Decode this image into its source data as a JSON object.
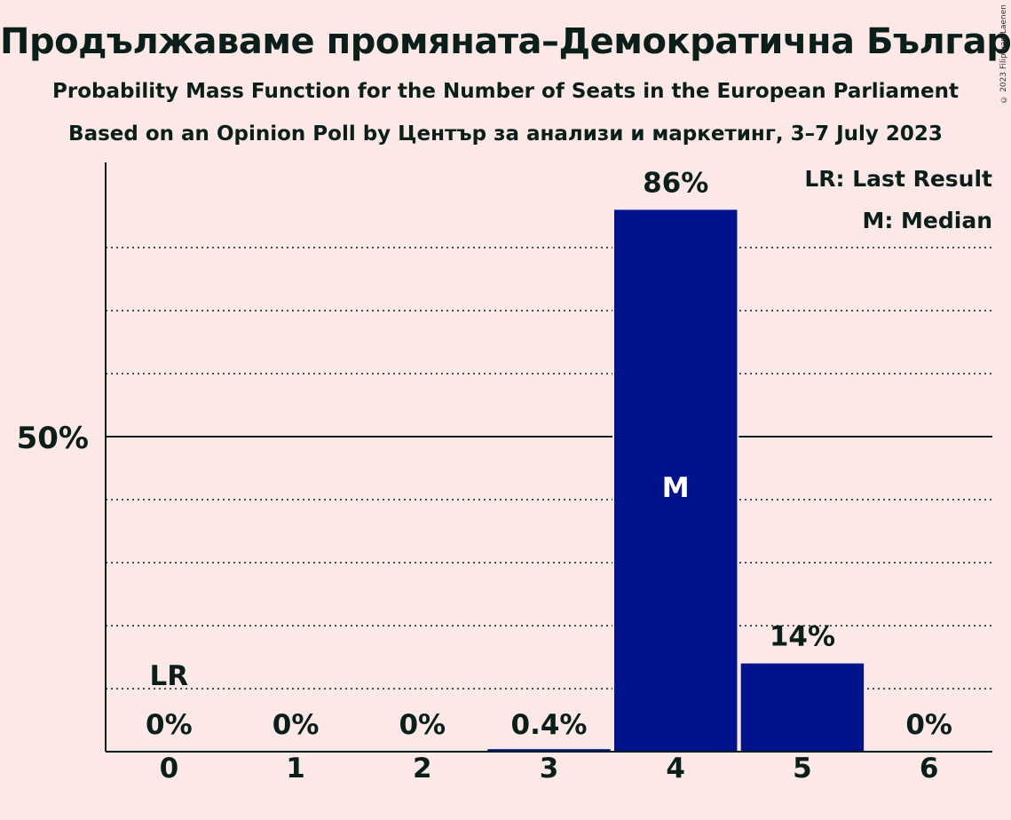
{
  "header": {
    "title": "Продължаваме промяната–Демократична България (Renew Europe)",
    "subtitle": "Probability Mass Function for the Number of Seats in the European Parliament",
    "source": "Based on an Opinion Poll by Център за анализи и маркетинг, 3–7 July 2023",
    "copyright": "© 2023 Filip van Laenen"
  },
  "colors": {
    "background": "#fde8e8",
    "bar": "#00128c",
    "text": "#0b1f1a"
  },
  "chart_data": {
    "type": "bar",
    "categories": [
      "0",
      "1",
      "2",
      "3",
      "4",
      "5",
      "6"
    ],
    "values": [
      0,
      0,
      0,
      0.4,
      86,
      14,
      0
    ],
    "labels": [
      "0%",
      "0%",
      "0%",
      "0.4%",
      "86%",
      "14%",
      "0%"
    ],
    "ylim": [
      0,
      94
    ],
    "yticks": [
      {
        "value": 50,
        "label": "50%"
      }
    ],
    "gridlines": [
      10,
      20,
      30,
      40,
      60,
      70,
      80
    ],
    "median_category": "4",
    "median_marker": "M",
    "last_result_category": "0",
    "last_result_marker": "LR",
    "legend": [
      "LR: Last Result",
      "M: Median"
    ],
    "legend_position": "top-right",
    "grid": true
  }
}
